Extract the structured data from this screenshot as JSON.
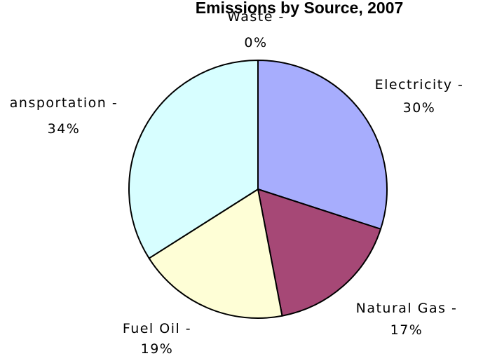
{
  "chart_data": {
    "type": "pie",
    "title": "Emissions by Source, 2007",
    "start_angle_deg": 0,
    "direction": "clockwise",
    "slices": [
      {
        "label": "Electricity -",
        "value_label": "30%",
        "value": 30,
        "color": "#a7adfd"
      },
      {
        "label": "Natural Gas -",
        "value_label": "17%",
        "value": 17,
        "color": "#a64876"
      },
      {
        "label": "Fuel Oil -",
        "value_label": "19%",
        "value": 19,
        "color": "#fefed6"
      },
      {
        "label": "ansportation -",
        "value_label": "34%",
        "value": 34,
        "color": "#d7feff"
      },
      {
        "label": "Waste -",
        "value_label": "0%",
        "value": 0,
        "color": "#d5d5d5"
      }
    ],
    "legend": "none",
    "slice_border_color": "#000000"
  }
}
